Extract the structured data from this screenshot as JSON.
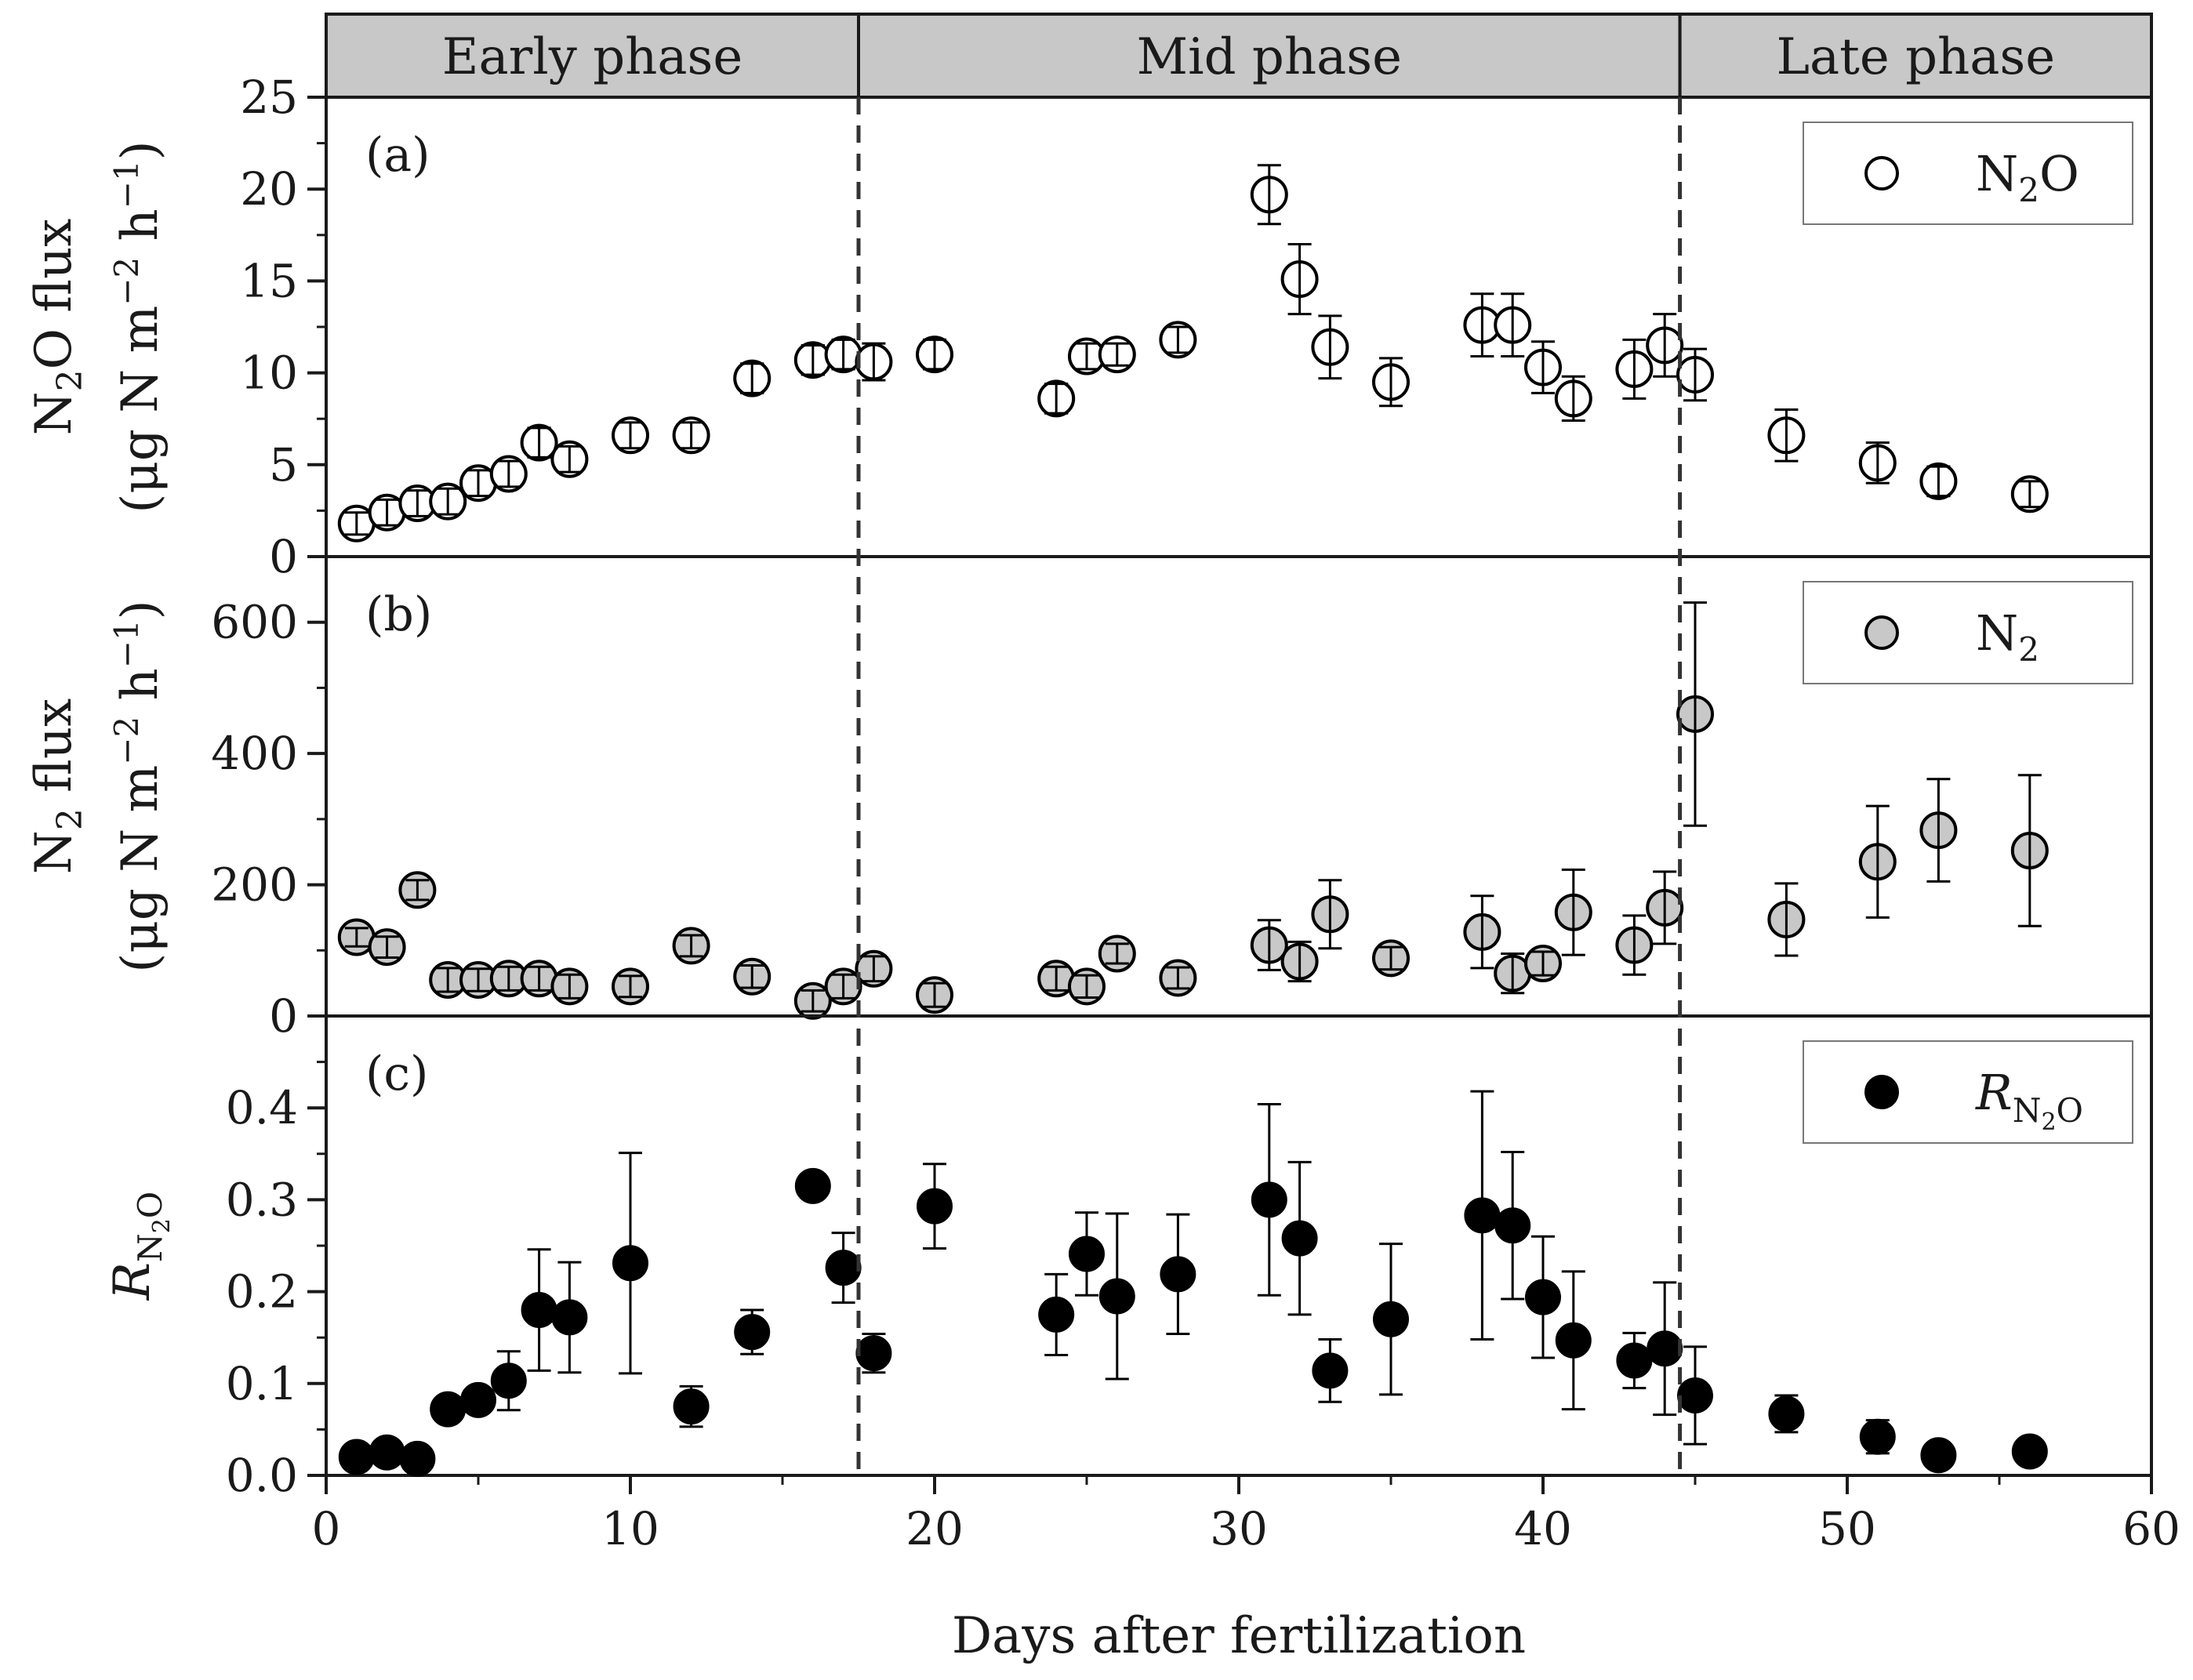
{
  "phases": [
    {
      "label": "Early phase",
      "start": 0,
      "end": 17.5
    },
    {
      "label": "Mid phase",
      "start": 17.5,
      "end": 44.5
    },
    {
      "label": "Late phase",
      "start": 44.5,
      "end": 60
    }
  ],
  "x_axis": {
    "label": "Days after fertilization",
    "range": [
      0,
      60
    ],
    "ticks": [
      0,
      10,
      20,
      30,
      40,
      50,
      60
    ],
    "minor_step": 5
  },
  "colors": {
    "n2o_fill": "#ffffff",
    "n2_fill": "#c8c8c8",
    "r_fill": "#000000",
    "phase_bar": "#c8c8c8",
    "axis": "#1a1a1a"
  },
  "chart_data": [
    {
      "type": "scatter",
      "panel_label": "(a)",
      "ylabel_main": "N",
      "ylabel_sub": "2",
      "ylabel_rest": "O flux",
      "ylabel_unit_prefix": "(μg N m",
      "ylabel_unit_exp1": "−2",
      "ylabel_unit_mid": " h",
      "ylabel_unit_exp2": "−1",
      "ylabel_unit_suffix": ")",
      "ylim": [
        0,
        25
      ],
      "yticks": [
        "0",
        "5",
        "10",
        "15",
        "20",
        "25"
      ],
      "ytick_values": [
        0,
        5,
        10,
        15,
        20,
        25
      ],
      "ytick_minor_step": 2.5,
      "legend": {
        "main": "N",
        "sub": "2",
        "rest": "O",
        "position": "top-right"
      },
      "marker": "open-circle",
      "series": [
        {
          "x": [
            1,
            2,
            3,
            4,
            5,
            6,
            7,
            8,
            10,
            12,
            14,
            16,
            17,
            18,
            20,
            24,
            25,
            26,
            28,
            31,
            32,
            33,
            35,
            38,
            39,
            40,
            41,
            43,
            44,
            45,
            48,
            51,
            53,
            56
          ],
          "y": [
            1.8,
            2.4,
            2.9,
            3.0,
            4.0,
            4.5,
            6.2,
            5.3,
            6.6,
            6.6,
            9.7,
            10.7,
            11.0,
            10.6,
            11.0,
            8.6,
            10.9,
            11.0,
            11.8,
            19.7,
            15.1,
            11.4,
            9.5,
            12.6,
            12.6,
            10.3,
            8.6,
            10.2,
            11.5,
            9.9,
            6.6,
            5.1,
            4.1,
            3.4
          ],
          "err": [
            0.6,
            0.7,
            0.7,
            0.7,
            0.7,
            0.7,
            0.8,
            0.7,
            0.7,
            0.7,
            0.8,
            0.8,
            0.8,
            1.0,
            0.8,
            0.8,
            0.7,
            0.6,
            0.7,
            1.6,
            1.9,
            1.7,
            1.3,
            1.7,
            1.7,
            1.4,
            1.2,
            1.6,
            1.7,
            1.4,
            1.4,
            1.1,
            0.8,
            0.7
          ]
        }
      ]
    },
    {
      "type": "scatter",
      "panel_label": "(b)",
      "ylabel_main": "N",
      "ylabel_sub": "2",
      "ylabel_rest": " flux",
      "ylabel_unit_prefix": "(μg N m",
      "ylabel_unit_exp1": "−2",
      "ylabel_unit_mid": " h",
      "ylabel_unit_exp2": "−1",
      "ylabel_unit_suffix": ")",
      "ylim": [
        0,
        700
      ],
      "yticks": [
        "0",
        "200",
        "400",
        "600"
      ],
      "ytick_values": [
        0,
        200,
        400,
        600
      ],
      "ytick_minor_step": 100,
      "legend": {
        "main": "N",
        "sub": "2",
        "rest": "",
        "position": "top-right"
      },
      "marker": "gray-circle",
      "series": [
        {
          "x": [
            1,
            2,
            3,
            4,
            5,
            6,
            7,
            8,
            10,
            12,
            14,
            16,
            17,
            18,
            20,
            24,
            25,
            26,
            28,
            31,
            32,
            33,
            35,
            38,
            39,
            40,
            41,
            43,
            44,
            45,
            48,
            51,
            53,
            56
          ],
          "y": [
            120,
            105,
            192,
            55,
            55,
            57,
            57,
            45,
            45,
            107,
            60,
            23,
            45,
            72,
            32,
            57,
            45,
            95,
            58,
            108,
            83,
            155,
            88,
            128,
            65,
            80,
            158,
            108,
            165,
            460,
            147,
            235,
            283,
            252
          ],
          "err": [
            14,
            16,
            15,
            18,
            17,
            18,
            18,
            18,
            16,
            16,
            17,
            16,
            18,
            19,
            18,
            18,
            17,
            15,
            16,
            38,
            30,
            52,
            17,
            55,
            30,
            18,
            65,
            45,
            55,
            170,
            55,
            85,
            78,
            115
          ]
        }
      ]
    },
    {
      "type": "scatter",
      "panel_label": "(c)",
      "ylabel_main": "R",
      "ylabel_sub": "N",
      "ylabel_sub2": "2",
      "ylabel_sub3": "O",
      "ylim": [
        0,
        0.5
      ],
      "yticks": [
        "0.0",
        "0.1",
        "0.2",
        "0.3",
        "0.4"
      ],
      "ytick_values": [
        0,
        0.1,
        0.2,
        0.3,
        0.4
      ],
      "ytick_minor_step": 0.05,
      "legend": {
        "main": "R",
        "sub": "N",
        "sub2": "2",
        "sub3": "O",
        "position": "top-right"
      },
      "marker": "filled-circle",
      "series": [
        {
          "x": [
            1,
            2,
            3,
            4,
            5,
            6,
            7,
            8,
            10,
            12,
            14,
            16,
            17,
            18,
            20,
            24,
            25,
            26,
            28,
            31,
            32,
            33,
            35,
            38,
            39,
            40,
            41,
            43,
            44,
            45,
            48,
            51,
            53,
            56
          ],
          "y": [
            0.02,
            0.025,
            0.018,
            0.072,
            0.082,
            0.103,
            0.18,
            0.172,
            0.231,
            0.075,
            0.156,
            0.315,
            0.226,
            0.133,
            0.293,
            0.175,
            0.241,
            0.195,
            0.219,
            0.3,
            0.258,
            0.114,
            0.17,
            0.283,
            0.272,
            0.194,
            0.147,
            0.125,
            0.138,
            0.087,
            0.067,
            0.042,
            0.022,
            0.026
          ],
          "err": [
            0.006,
            0.006,
            0.006,
            0.012,
            0.012,
            0.032,
            0.066,
            0.06,
            0.12,
            0.022,
            0.024,
            0.008,
            0.038,
            0.021,
            0.046,
            0.044,
            0.045,
            0.09,
            0.065,
            0.104,
            0.083,
            0.034,
            0.082,
            0.135,
            0.08,
            0.066,
            0.075,
            0.03,
            0.072,
            0.053,
            0.02,
            0.018,
            0.006,
            0.005
          ]
        }
      ]
    }
  ]
}
